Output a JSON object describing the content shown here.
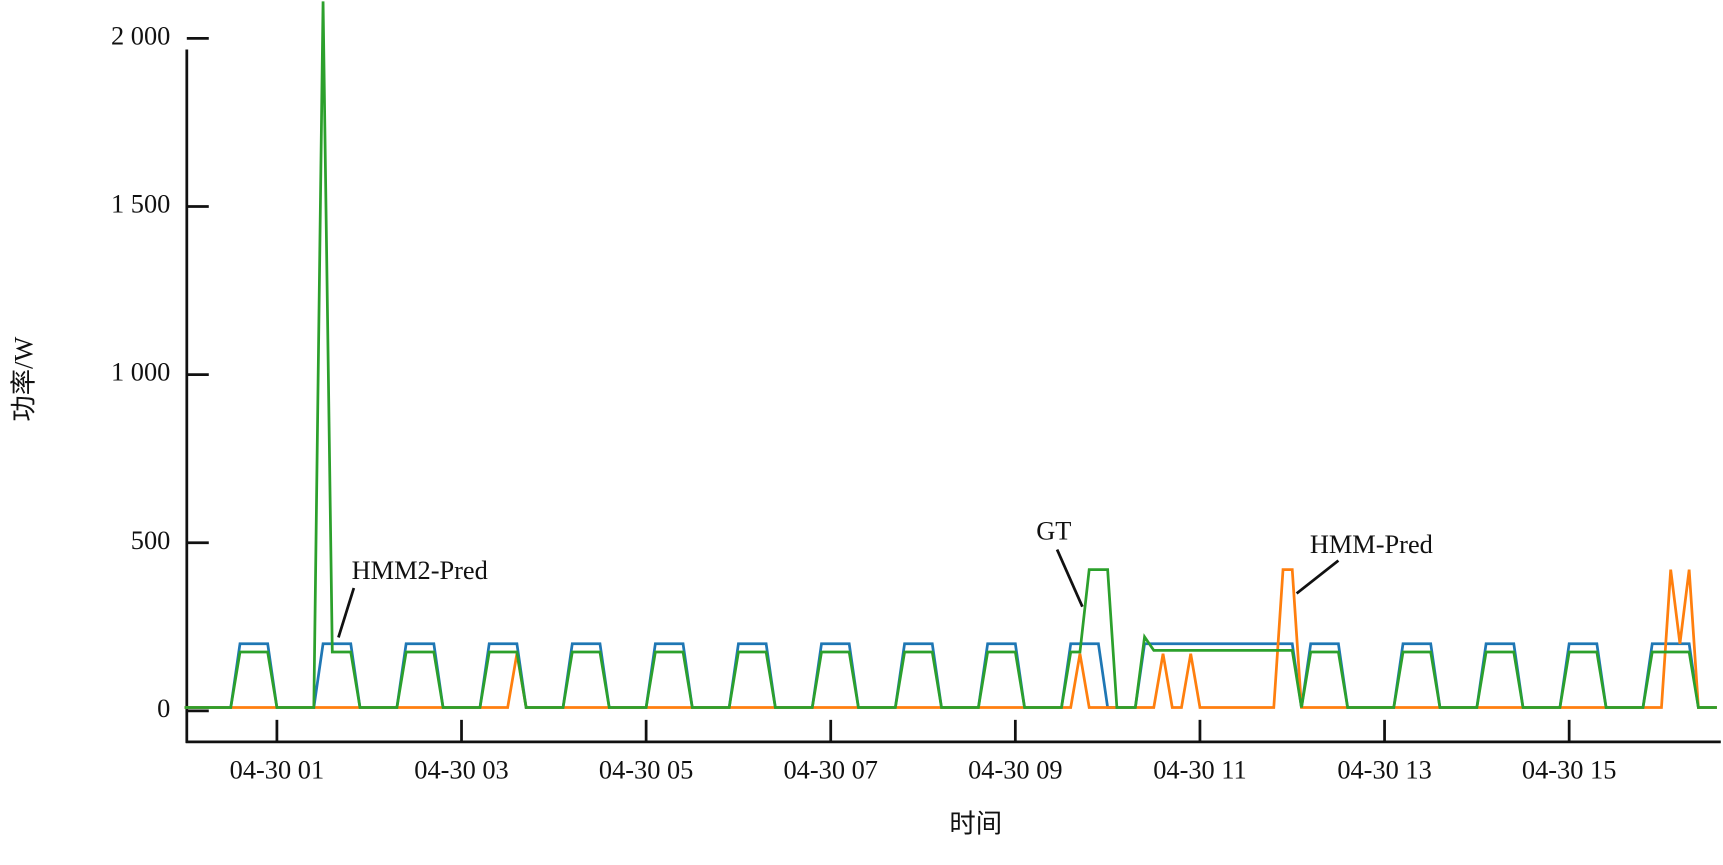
{
  "chart_data": {
    "type": "line",
    "xlabel": "时间",
    "ylabel": "功率/W",
    "xlim": [
      0,
      16.63
    ],
    "ylim": [
      -92,
      2114
    ],
    "xticks": [
      {
        "value": 1,
        "label": "04-30 01"
      },
      {
        "value": 3,
        "label": "04-30 03"
      },
      {
        "value": 5,
        "label": "04-30 05"
      },
      {
        "value": 7,
        "label": "04-30 07"
      },
      {
        "value": 9,
        "label": "04-30 09"
      },
      {
        "value": 11,
        "label": "04-30 11"
      },
      {
        "value": 13,
        "label": "04-30 13"
      },
      {
        "value": 15,
        "label": "04-30 15"
      }
    ],
    "yticks": [
      0,
      500,
      {
        "value": 1000,
        "label": "1 000"
      },
      {
        "value": 1500,
        "label": "1 500"
      },
      {
        "value": 2000,
        "label": "2 000"
      }
    ],
    "x": [
      0,
      0.1,
      0.2,
      0.3,
      0.4,
      0.5,
      0.6,
      0.7,
      0.8,
      0.9,
      1,
      1.1,
      1.2,
      1.3,
      1.4,
      1.5,
      1.6,
      1.7,
      1.8,
      1.9,
      2,
      2.1,
      2.2,
      2.3,
      2.4,
      2.5,
      2.6,
      2.7,
      2.8,
      2.9,
      3,
      3.1,
      3.2,
      3.3,
      3.4,
      3.5,
      3.6,
      3.7,
      3.8,
      3.9,
      4,
      4.1,
      4.2,
      4.3,
      4.4,
      4.5,
      4.6,
      4.7,
      4.8,
      4.9,
      5,
      5.1,
      5.2,
      5.3,
      5.4,
      5.5,
      5.6,
      5.7,
      5.8,
      5.9,
      6,
      6.1,
      6.2,
      6.3,
      6.4,
      6.5,
      6.6,
      6.7,
      6.8,
      6.9,
      7,
      7.1,
      7.2,
      7.3,
      7.4,
      7.5,
      7.6,
      7.7,
      7.8,
      7.9,
      8,
      8.1,
      8.2,
      8.3,
      8.4,
      8.5,
      8.6,
      8.7,
      8.8,
      8.9,
      9,
      9.1,
      9.2,
      9.3,
      9.4,
      9.5,
      9.6,
      9.7,
      9.8,
      9.9,
      10,
      10.1,
      10.2,
      10.3,
      10.4,
      10.5,
      10.6,
      10.7,
      10.8,
      10.9,
      11,
      11.1,
      11.2,
      11.3,
      11.4,
      11.5,
      11.6,
      11.7,
      11.8,
      11.9,
      12,
      12.1,
      12.2,
      12.3,
      12.4,
      12.5,
      12.6,
      12.7,
      12.8,
      12.9,
      13,
      13.1,
      13.2,
      13.3,
      13.4,
      13.5,
      13.6,
      13.7,
      13.8,
      13.9,
      14,
      14.1,
      14.2,
      14.3,
      14.4,
      14.5,
      14.6,
      14.7,
      14.8,
      14.9,
      15,
      15.1,
      15.2,
      15.3,
      15.4,
      15.5,
      15.6,
      15.7,
      15.8,
      15.9,
      16,
      16.1,
      16.2,
      16.3,
      16.4,
      16.5,
      16.6
    ],
    "series": [
      {
        "name": "HMM2-Pred",
        "color": "#1f77b4",
        "values": [
          10,
          10,
          10,
          10,
          10,
          10,
          200,
          200,
          200,
          200,
          10,
          10,
          10,
          10,
          10,
          200,
          200,
          200,
          200,
          10,
          10,
          10,
          10,
          10,
          200,
          200,
          200,
          200,
          10,
          10,
          10,
          10,
          10,
          200,
          200,
          200,
          200,
          10,
          10,
          10,
          10,
          10,
          200,
          200,
          200,
          200,
          10,
          10,
          10,
          10,
          10,
          200,
          200,
          200,
          200,
          10,
          10,
          10,
          10,
          10,
          200,
          200,
          200,
          200,
          10,
          10,
          10,
          10,
          10,
          200,
          200,
          200,
          200,
          10,
          10,
          10,
          10,
          10,
          200,
          200,
          200,
          200,
          10,
          10,
          10,
          10,
          10,
          200,
          200,
          200,
          200,
          10,
          10,
          10,
          10,
          10,
          200,
          200,
          200,
          200,
          10,
          10,
          10,
          10,
          200,
          200,
          200,
          200,
          200,
          200,
          200,
          200,
          200,
          200,
          200,
          200,
          200,
          200,
          200,
          200,
          200,
          10,
          200,
          200,
          200,
          200,
          10,
          10,
          10,
          10,
          10,
          10,
          200,
          200,
          200,
          200,
          10,
          10,
          10,
          10,
          10,
          200,
          200,
          200,
          200,
          10,
          10,
          10,
          10,
          10,
          200,
          200,
          200,
          200,
          10,
          10,
          10,
          10,
          10,
          200,
          200,
          200,
          200,
          200,
          10,
          10,
          10
        ]
      },
      {
        "name": "HMM-Pred",
        "color": "#ff7f0e",
        "values": [
          10,
          10,
          10,
          10,
          10,
          10,
          10,
          10,
          10,
          10,
          10,
          10,
          10,
          10,
          10,
          10,
          10,
          10,
          10,
          10,
          10,
          10,
          10,
          10,
          10,
          10,
          10,
          10,
          10,
          10,
          10,
          10,
          10,
          10,
          10,
          10,
          170,
          10,
          10,
          10,
          10,
          10,
          10,
          10,
          10,
          10,
          10,
          10,
          10,
          10,
          10,
          10,
          10,
          10,
          10,
          10,
          10,
          10,
          10,
          10,
          10,
          10,
          10,
          10,
          10,
          10,
          10,
          10,
          10,
          10,
          10,
          10,
          10,
          10,
          10,
          10,
          10,
          10,
          10,
          10,
          10,
          10,
          10,
          10,
          10,
          10,
          10,
          10,
          10,
          10,
          10,
          10,
          10,
          10,
          10,
          10,
          10,
          170,
          10,
          10,
          10,
          10,
          10,
          10,
          10,
          10,
          170,
          10,
          10,
          170,
          10,
          10,
          10,
          10,
          10,
          10,
          10,
          10,
          10,
          420,
          420,
          10,
          10,
          10,
          10,
          10,
          10,
          10,
          10,
          10,
          10,
          10,
          10,
          10,
          10,
          10,
          10,
          10,
          10,
          10,
          10,
          10,
          10,
          10,
          10,
          10,
          10,
          10,
          10,
          10,
          10,
          10,
          10,
          10,
          10,
          10,
          10,
          10,
          10,
          10,
          10,
          420,
          200,
          420,
          10,
          10,
          10
        ]
      },
      {
        "name": "GT",
        "color": "#2ca02c",
        "values": [
          10,
          10,
          10,
          10,
          10,
          10,
          175,
          175,
          175,
          175,
          10,
          10,
          10,
          10,
          10,
          2110,
          175,
          175,
          175,
          10,
          10,
          10,
          10,
          10,
          175,
          175,
          175,
          175,
          10,
          10,
          10,
          10,
          10,
          175,
          175,
          175,
          175,
          10,
          10,
          10,
          10,
          10,
          175,
          175,
          175,
          175,
          10,
          10,
          10,
          10,
          10,
          175,
          175,
          175,
          175,
          10,
          10,
          10,
          10,
          10,
          175,
          175,
          175,
          175,
          10,
          10,
          10,
          10,
          10,
          175,
          175,
          175,
          175,
          10,
          10,
          10,
          10,
          10,
          175,
          175,
          175,
          175,
          10,
          10,
          10,
          10,
          10,
          175,
          175,
          175,
          175,
          10,
          10,
          10,
          10,
          10,
          175,
          175,
          420,
          420,
          420,
          10,
          10,
          10,
          220,
          180,
          180,
          180,
          180,
          180,
          180,
          180,
          180,
          180,
          180,
          180,
          180,
          180,
          180,
          180,
          180,
          10,
          175,
          175,
          175,
          175,
          10,
          10,
          10,
          10,
          10,
          10,
          175,
          175,
          175,
          175,
          10,
          10,
          10,
          10,
          10,
          175,
          175,
          175,
          175,
          10,
          10,
          10,
          10,
          10,
          175,
          175,
          175,
          175,
          10,
          10,
          10,
          10,
          10,
          175,
          175,
          175,
          175,
          175,
          10,
          10,
          10
        ]
      }
    ]
  }
}
